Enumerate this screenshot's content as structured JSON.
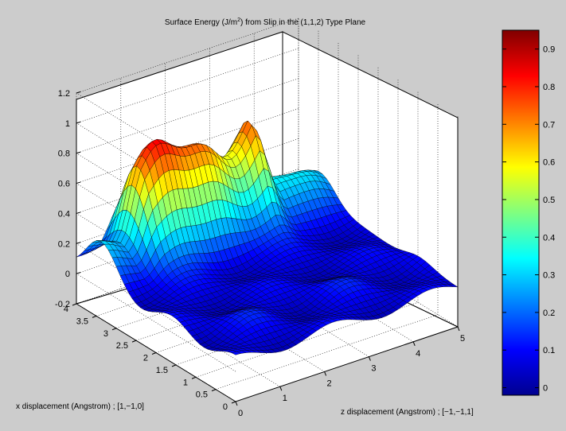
{
  "figure": {
    "background_color": "#cccccc",
    "axes_background_color": "#ffffff"
  },
  "chart_data": {
    "type": "surface",
    "title": "Surface Energy (J/m²) from Slip in the (1,1,2) Type Plane",
    "title_parts": {
      "prefix": "Surface Energy (J/m",
      "superscript": "2",
      "suffix": ") from Slip in the (1,1,2) Type Plane"
    },
    "xlabel": "x displacement (Angstrom) ; [1,−1,0]",
    "ylabel": "z displacement (Angstrom) ; [−1,−1,1]",
    "zlabel": "",
    "x_range": [
      0,
      4
    ],
    "z_displacement_range": [
      0,
      5
    ],
    "energy_range": [
      -0.2,
      1.2
    ],
    "x_ticks": [
      "0",
      "0.5",
      "1",
      "1.5",
      "2",
      "2.5",
      "3",
      "3.5",
      "4"
    ],
    "z_displacement_ticks": [
      "0",
      "1",
      "2",
      "3",
      "4",
      "5"
    ],
    "energy_ticks": [
      "-0.2",
      "0",
      "0.2",
      "0.4",
      "0.6",
      "0.8",
      "1",
      "1.2"
    ],
    "colorbar": {
      "colormap": "jet",
      "range": [
        -0.02,
        0.95
      ],
      "ticks": [
        "0",
        "0.1",
        "0.2",
        "0.3",
        "0.4",
        "0.5",
        "0.6",
        "0.7",
        "0.8",
        "0.9"
      ]
    },
    "grid": true,
    "surface": {
      "x_displacement_samples": [
        0,
        0.5,
        1,
        1.5,
        2,
        2.5,
        3,
        3.5,
        4
      ],
      "z_displacement_samples": [
        0,
        1,
        2,
        3,
        4,
        5
      ],
      "low_valley_energy_approx": [
        0.0,
        0.2
      ],
      "ridge_x_displacement_approx": 3.5,
      "ridge_peak_energy_approx": 0.9,
      "ridge_peak_z_displacement_approx": [
        1.2,
        3.4
      ]
    }
  }
}
